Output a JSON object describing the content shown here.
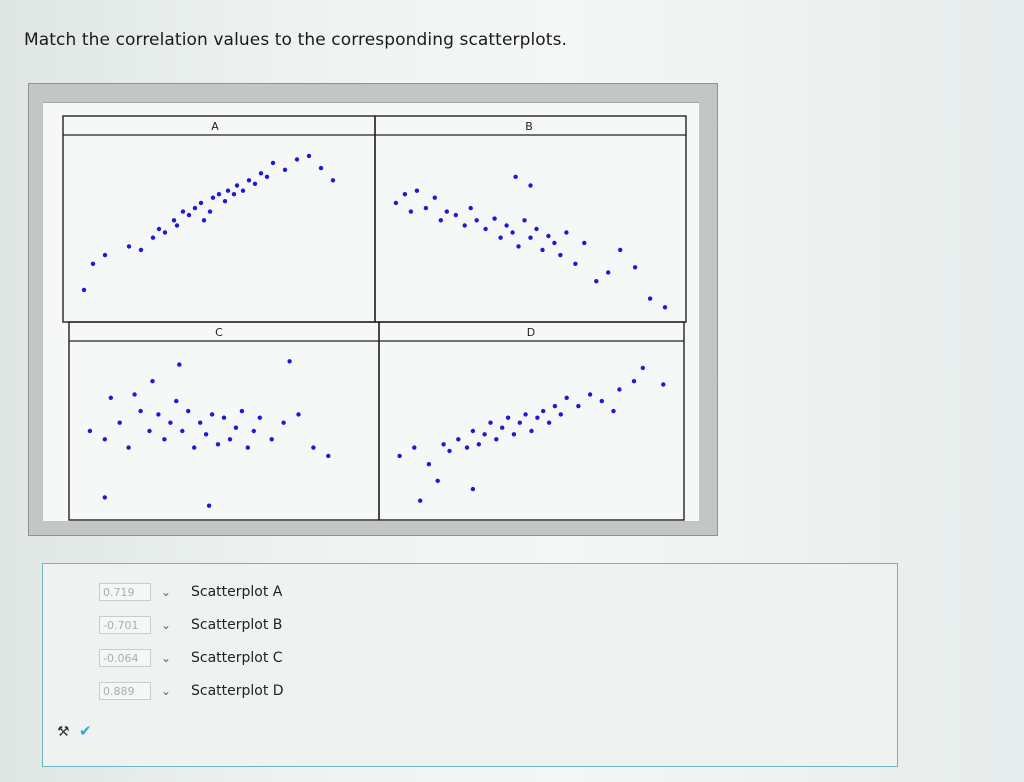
{
  "question": "Match the correlation values to the corresponding scatterplots.",
  "chart_data": {
    "type": "scatter",
    "panels": [
      {
        "title": "A",
        "points": [
          [
            0.05,
            0.15
          ],
          [
            0.08,
            0.3
          ],
          [
            0.12,
            0.35
          ],
          [
            0.2,
            0.4
          ],
          [
            0.24,
            0.38
          ],
          [
            0.28,
            0.45
          ],
          [
            0.3,
            0.5
          ],
          [
            0.32,
            0.48
          ],
          [
            0.35,
            0.55
          ],
          [
            0.36,
            0.52
          ],
          [
            0.38,
            0.6
          ],
          [
            0.4,
            0.58
          ],
          [
            0.42,
            0.62
          ],
          [
            0.44,
            0.65
          ],
          [
            0.45,
            0.55
          ],
          [
            0.47,
            0.6
          ],
          [
            0.48,
            0.68
          ],
          [
            0.5,
            0.7
          ],
          [
            0.52,
            0.66
          ],
          [
            0.53,
            0.72
          ],
          [
            0.55,
            0.7
          ],
          [
            0.56,
            0.75
          ],
          [
            0.58,
            0.72
          ],
          [
            0.6,
            0.78
          ],
          [
            0.62,
            0.76
          ],
          [
            0.64,
            0.82
          ],
          [
            0.66,
            0.8
          ],
          [
            0.68,
            0.88
          ],
          [
            0.72,
            0.84
          ],
          [
            0.76,
            0.9
          ],
          [
            0.8,
            0.92
          ],
          [
            0.84,
            0.85
          ],
          [
            0.88,
            0.78
          ]
        ]
      },
      {
        "title": "B",
        "points": [
          [
            0.05,
            0.65
          ],
          [
            0.08,
            0.7
          ],
          [
            0.1,
            0.6
          ],
          [
            0.12,
            0.72
          ],
          [
            0.15,
            0.62
          ],
          [
            0.18,
            0.68
          ],
          [
            0.2,
            0.55
          ],
          [
            0.22,
            0.6
          ],
          [
            0.25,
            0.58
          ],
          [
            0.28,
            0.52
          ],
          [
            0.3,
            0.62
          ],
          [
            0.32,
            0.55
          ],
          [
            0.35,
            0.5
          ],
          [
            0.38,
            0.56
          ],
          [
            0.4,
            0.45
          ],
          [
            0.42,
            0.52
          ],
          [
            0.44,
            0.48
          ],
          [
            0.46,
            0.4
          ],
          [
            0.48,
            0.55
          ],
          [
            0.5,
            0.45
          ],
          [
            0.52,
            0.5
          ],
          [
            0.54,
            0.38
          ],
          [
            0.56,
            0.46
          ],
          [
            0.58,
            0.42
          ],
          [
            0.6,
            0.35
          ],
          [
            0.62,
            0.48
          ],
          [
            0.65,
            0.3
          ],
          [
            0.68,
            0.42
          ],
          [
            0.72,
            0.2
          ],
          [
            0.76,
            0.25
          ],
          [
            0.8,
            0.38
          ],
          [
            0.85,
            0.28
          ],
          [
            0.9,
            0.1
          ],
          [
            0.95,
            0.05
          ],
          [
            0.45,
            0.8
          ],
          [
            0.5,
            0.75
          ]
        ]
      },
      {
        "title": "C",
        "points": [
          [
            0.05,
            0.5
          ],
          [
            0.1,
            0.45
          ],
          [
            0.12,
            0.7
          ],
          [
            0.15,
            0.55
          ],
          [
            0.18,
            0.4
          ],
          [
            0.2,
            0.72
          ],
          [
            0.22,
            0.62
          ],
          [
            0.25,
            0.5
          ],
          [
            0.26,
            0.8
          ],
          [
            0.28,
            0.6
          ],
          [
            0.3,
            0.45
          ],
          [
            0.32,
            0.55
          ],
          [
            0.34,
            0.68
          ],
          [
            0.36,
            0.5
          ],
          [
            0.38,
            0.62
          ],
          [
            0.4,
            0.4
          ],
          [
            0.42,
            0.55
          ],
          [
            0.44,
            0.48
          ],
          [
            0.46,
            0.6
          ],
          [
            0.48,
            0.42
          ],
          [
            0.5,
            0.58
          ],
          [
            0.52,
            0.45
          ],
          [
            0.54,
            0.52
          ],
          [
            0.56,
            0.62
          ],
          [
            0.58,
            0.4
          ],
          [
            0.6,
            0.5
          ],
          [
            0.62,
            0.58
          ],
          [
            0.66,
            0.45
          ],
          [
            0.7,
            0.55
          ],
          [
            0.75,
            0.6
          ],
          [
            0.8,
            0.4
          ],
          [
            0.85,
            0.35
          ],
          [
            0.1,
            0.1
          ],
          [
            0.45,
            0.05
          ],
          [
            0.35,
            0.9
          ],
          [
            0.72,
            0.92
          ]
        ]
      },
      {
        "title": "D",
        "points": [
          [
            0.05,
            0.35
          ],
          [
            0.1,
            0.4
          ],
          [
            0.15,
            0.3
          ],
          [
            0.18,
            0.2
          ],
          [
            0.2,
            0.42
          ],
          [
            0.22,
            0.38
          ],
          [
            0.25,
            0.45
          ],
          [
            0.28,
            0.4
          ],
          [
            0.3,
            0.5
          ],
          [
            0.32,
            0.42
          ],
          [
            0.34,
            0.48
          ],
          [
            0.36,
            0.55
          ],
          [
            0.38,
            0.45
          ],
          [
            0.4,
            0.52
          ],
          [
            0.42,
            0.58
          ],
          [
            0.44,
            0.48
          ],
          [
            0.46,
            0.55
          ],
          [
            0.48,
            0.6
          ],
          [
            0.5,
            0.5
          ],
          [
            0.52,
            0.58
          ],
          [
            0.54,
            0.62
          ],
          [
            0.56,
            0.55
          ],
          [
            0.58,
            0.65
          ],
          [
            0.6,
            0.6
          ],
          [
            0.62,
            0.7
          ],
          [
            0.66,
            0.65
          ],
          [
            0.7,
            0.72
          ],
          [
            0.74,
            0.68
          ],
          [
            0.78,
            0.62
          ],
          [
            0.8,
            0.75
          ],
          [
            0.85,
            0.8
          ],
          [
            0.88,
            0.88
          ],
          [
            0.95,
            0.78
          ],
          [
            0.12,
            0.08
          ],
          [
            0.3,
            0.15
          ]
        ]
      }
    ]
  },
  "answers": [
    {
      "value": "0.719",
      "label": "Scatterplot A"
    },
    {
      "value": "-0.701",
      "label": "Scatterplot B"
    },
    {
      "value": "-0.064",
      "label": "Scatterplot C"
    },
    {
      "value": "0.889",
      "label": "Scatterplot D"
    }
  ],
  "icons": {
    "dropdown": "chevron-down-icon",
    "tool": "tool-icon",
    "check": "check-icon"
  },
  "colors": {
    "points": "#1a1ad8",
    "answer_border": "#6fb5c4"
  }
}
